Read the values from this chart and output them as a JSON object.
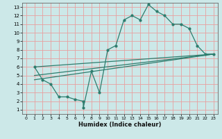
{
  "xlabel": "Humidex (Indice chaleur)",
  "bg_color": "#cce8e8",
  "grid_color": "#e8a0a0",
  "line_color": "#2d7d6e",
  "xlim": [
    -0.5,
    23.5
  ],
  "ylim": [
    0.5,
    13.5
  ],
  "xticks": [
    0,
    1,
    2,
    3,
    4,
    5,
    6,
    7,
    8,
    9,
    10,
    11,
    12,
    13,
    14,
    15,
    16,
    17,
    18,
    19,
    20,
    21,
    22,
    23
  ],
  "yticks": [
    1,
    2,
    3,
    4,
    5,
    6,
    7,
    8,
    9,
    10,
    11,
    12,
    13
  ],
  "curve1_x": [
    1,
    2,
    3,
    4,
    5,
    6,
    7,
    7,
    8,
    9,
    10,
    11,
    12,
    13,
    14,
    15,
    16,
    17,
    18,
    19,
    20,
    21,
    22,
    23
  ],
  "curve1_y": [
    6.0,
    4.5,
    4.0,
    2.5,
    2.5,
    2.2,
    2.0,
    1.2,
    5.5,
    3.0,
    8.0,
    8.5,
    11.5,
    12.0,
    11.5,
    13.3,
    12.5,
    12.0,
    11.0,
    11.0,
    10.5,
    8.5,
    7.5,
    7.5
  ],
  "line2_x": [
    1,
    23
  ],
  "line2_y": [
    6.0,
    7.5
  ],
  "line3_x": [
    1,
    23
  ],
  "line3_y": [
    5.0,
    7.5
  ],
  "line4_x": [
    1,
    23
  ],
  "line4_y": [
    4.5,
    7.5
  ]
}
